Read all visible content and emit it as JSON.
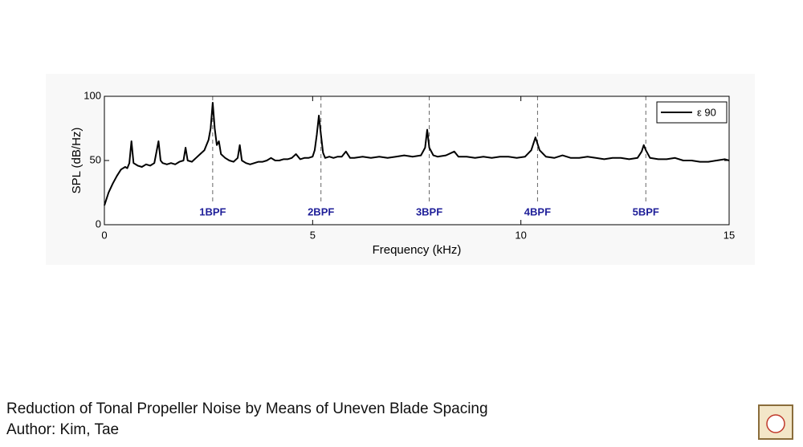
{
  "chart_data": {
    "type": "line",
    "xlabel": "Frequency (kHz)",
    "ylabel": "SPL (dB/Hz)",
    "x": [
      0,
      0.05,
      0.1,
      0.2,
      0.3,
      0.4,
      0.5,
      0.55,
      0.6,
      0.65,
      0.7,
      0.8,
      0.9,
      1.0,
      1.1,
      1.2,
      1.3,
      1.35,
      1.4,
      1.5,
      1.6,
      1.7,
      1.8,
      1.9,
      1.95,
      2.0,
      2.1,
      2.2,
      2.3,
      2.4,
      2.45,
      2.5,
      2.55,
      2.6,
      2.65,
      2.7,
      2.75,
      2.8,
      2.9,
      3.0,
      3.1,
      3.2,
      3.25,
      3.3,
      3.4,
      3.5,
      3.6,
      3.7,
      3.8,
      3.9,
      4.0,
      4.1,
      4.2,
      4.3,
      4.4,
      4.5,
      4.6,
      4.7,
      4.8,
      4.9,
      5.0,
      5.05,
      5.1,
      5.15,
      5.2,
      5.25,
      5.3,
      5.4,
      5.5,
      5.6,
      5.7,
      5.8,
      5.9,
      6.0,
      6.2,
      6.4,
      6.6,
      6.8,
      7.0,
      7.2,
      7.4,
      7.6,
      7.7,
      7.75,
      7.8,
      7.9,
      8.0,
      8.2,
      8.4,
      8.5,
      8.7,
      8.9,
      9.1,
      9.3,
      9.5,
      9.7,
      9.9,
      10.1,
      10.25,
      10.35,
      10.45,
      10.6,
      10.8,
      11.0,
      11.2,
      11.4,
      11.6,
      11.8,
      12.0,
      12.2,
      12.4,
      12.6,
      12.8,
      12.9,
      12.95,
      13.0,
      13.1,
      13.3,
      13.5,
      13.7,
      13.9,
      14.1,
      14.3,
      14.5,
      14.7,
      14.9,
      15
    ],
    "series": [
      {
        "name": "ε 90",
        "color": "#000000",
        "values": [
          15,
          20,
          25,
          32,
          38,
          43,
          45,
          44,
          48,
          65,
          48,
          46,
          45,
          47,
          46,
          48,
          65,
          50,
          48,
          47,
          48,
          47,
          49,
          50,
          60,
          50,
          49,
          52,
          55,
          58,
          62,
          66,
          75,
          95,
          75,
          62,
          65,
          55,
          52,
          50,
          49,
          52,
          62,
          50,
          48,
          47,
          48,
          49,
          49,
          50,
          52,
          50,
          50,
          51,
          51,
          52,
          55,
          51,
          52,
          52,
          53,
          58,
          70,
          85,
          70,
          56,
          52,
          53,
          52,
          53,
          53,
          57,
          52,
          52,
          53,
          52,
          53,
          52,
          53,
          54,
          53,
          54,
          60,
          74,
          60,
          54,
          53,
          54,
          57,
          53,
          53,
          52,
          53,
          52,
          53,
          53,
          52,
          53,
          58,
          68,
          58,
          53,
          52,
          54,
          52,
          52,
          53,
          52,
          51,
          52,
          52,
          51,
          52,
          57,
          62,
          58,
          52,
          51,
          51,
          52,
          50,
          50,
          49,
          49,
          50,
          51,
          50
        ]
      }
    ],
    "annotations": [
      {
        "x": 2.6,
        "label": "1BPF"
      },
      {
        "x": 5.2,
        "label": "2BPF"
      },
      {
        "x": 7.8,
        "label": "3BPF"
      },
      {
        "x": 10.4,
        "label": "4BPF"
      },
      {
        "x": 13.0,
        "label": "5BPF"
      }
    ],
    "xlim": [
      0,
      15
    ],
    "xticks": [
      0,
      5,
      10,
      15
    ],
    "ylim": [
      0,
      100
    ],
    "yticks": [
      0,
      50,
      100
    ],
    "grid": false,
    "legend": "upper right"
  },
  "caption": {
    "title": "Reduction of Tonal Propeller Noise by Means of Uneven Blade Spacing",
    "author": "Author: Kim, Tae"
  }
}
